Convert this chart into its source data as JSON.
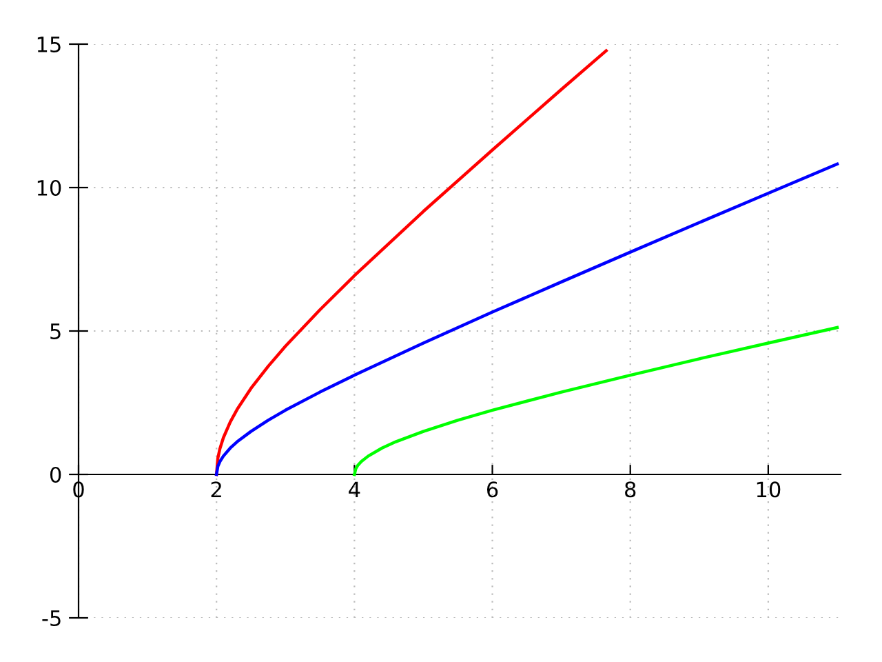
{
  "chart_data": {
    "type": "line",
    "xlim": [
      0,
      11.05
    ],
    "ylim": [
      -5,
      15
    ],
    "xticks": [
      0,
      2,
      4,
      6,
      8,
      10
    ],
    "yticks": [
      -5,
      0,
      5,
      10,
      15
    ],
    "grid": true,
    "marker": "none",
    "line_style": "solid",
    "legend": false,
    "series": [
      {
        "color": "#ff0000",
        "x": [
          2,
          2.02,
          2.05,
          2.1,
          2.2,
          2.3,
          2.5,
          2.75,
          3,
          3.5,
          4,
          5,
          6,
          7,
          7.65
        ],
        "values": [
          0,
          0.57,
          0.9,
          1.28,
          1.83,
          2.27,
          3.0,
          3.77,
          4.47,
          5.74,
          6.93,
          9.17,
          11.31,
          13.42,
          14.77
        ]
      },
      {
        "color": "#0000ff",
        "x": [
          2,
          2.02,
          2.05,
          2.1,
          2.2,
          2.3,
          2.5,
          2.75,
          3,
          3.5,
          4,
          5,
          6,
          7,
          8,
          9,
          10,
          11
        ],
        "values": [
          0,
          0.28,
          0.45,
          0.64,
          0.92,
          1.14,
          1.5,
          1.89,
          2.24,
          2.87,
          3.46,
          4.58,
          5.66,
          6.71,
          7.75,
          8.78,
          9.8,
          10.82
        ]
      },
      {
        "color": "#00ff00",
        "x": [
          4,
          4.02,
          4.05,
          4.1,
          4.2,
          4.4,
          4.6,
          5,
          5.5,
          6,
          7,
          8,
          9,
          10,
          11
        ],
        "values": [
          0,
          0.2,
          0.32,
          0.45,
          0.64,
          0.92,
          1.14,
          1.5,
          1.89,
          2.24,
          2.87,
          3.46,
          4.03,
          4.58,
          5.12
        ]
      }
    ]
  }
}
